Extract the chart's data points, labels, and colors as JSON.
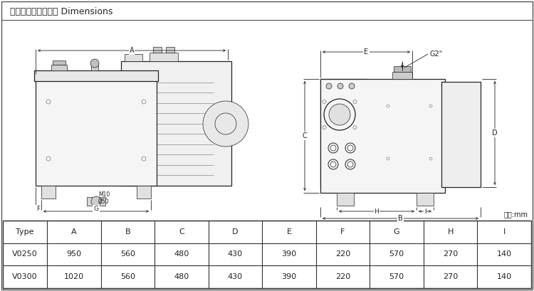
{
  "title": "外型尺寸及安装尺寸 Dimensions",
  "unit_label": "单位:mm",
  "table_headers": [
    "Type",
    "A",
    "B",
    "C",
    "D",
    "E",
    "F",
    "G",
    "H",
    "I"
  ],
  "table_rows": [
    [
      "V0250",
      "950",
      "560",
      "480",
      "430",
      "390",
      "220",
      "570",
      "270",
      "140"
    ],
    [
      "V0300",
      "1020",
      "560",
      "480",
      "430",
      "390",
      "220",
      "570",
      "270",
      "140"
    ]
  ],
  "bg_color": "#ffffff",
  "line_color": "#222222",
  "border_color": "#444444",
  "lw_main": 0.9,
  "lw_dim": 0.6,
  "lw_thin": 0.5
}
